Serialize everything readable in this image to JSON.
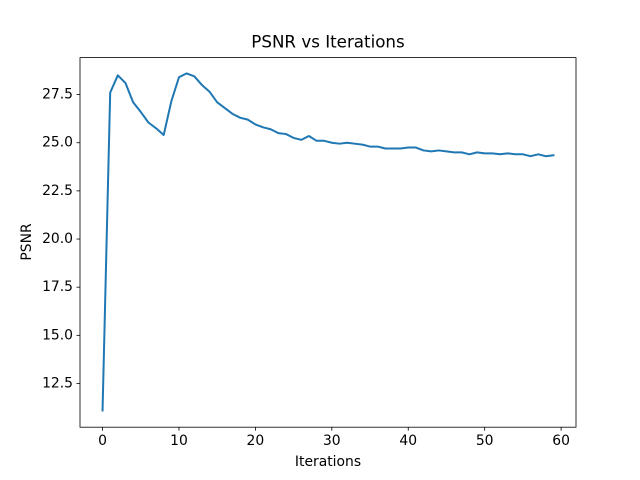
{
  "chart_data": {
    "type": "line",
    "title": "PSNR vs Iterations",
    "xlabel": "Iterations",
    "ylabel": "PSNR",
    "color": "#1f77b4",
    "x": [
      0,
      1,
      2,
      3,
      4,
      5,
      6,
      7,
      8,
      9,
      10,
      11,
      12,
      13,
      14,
      15,
      16,
      17,
      18,
      19,
      20,
      21,
      22,
      23,
      24,
      25,
      26,
      27,
      28,
      29,
      30,
      31,
      32,
      33,
      34,
      35,
      36,
      37,
      38,
      39,
      40,
      41,
      42,
      43,
      44,
      45,
      46,
      47,
      48,
      49,
      50,
      51,
      52,
      53,
      54,
      55,
      56,
      57,
      58,
      59
    ],
    "values": [
      11.1,
      27.6,
      28.5,
      28.1,
      27.1,
      26.6,
      26.05,
      25.75,
      25.4,
      27.15,
      28.4,
      28.6,
      28.45,
      28.0,
      27.65,
      27.1,
      26.8,
      26.5,
      26.3,
      26.2,
      25.95,
      25.8,
      25.7,
      25.5,
      25.45,
      25.25,
      25.15,
      25.35,
      25.1,
      25.1,
      25.0,
      24.95,
      25.0,
      24.95,
      24.9,
      24.8,
      24.8,
      24.7,
      24.7,
      24.7,
      24.75,
      24.75,
      24.6,
      24.55,
      24.6,
      24.55,
      24.5,
      24.5,
      24.4,
      24.5,
      24.45,
      24.45,
      24.4,
      24.45,
      24.4,
      24.4,
      24.3,
      24.4,
      24.3,
      24.35
    ],
    "xlim": [
      -2.95,
      61.95
    ],
    "xticks": [
      0,
      10,
      20,
      30,
      40,
      50,
      60
    ],
    "ylim": [
      10.23,
      29.42
    ],
    "yticks": [
      12.5,
      {
        "value": 15,
        "label": "15.0"
      },
      17.5,
      {
        "value": 20,
        "label": "20.0"
      },
      22.5,
      {
        "value": 25,
        "label": "25.0"
      },
      27.5
    ],
    "grid": false
  }
}
